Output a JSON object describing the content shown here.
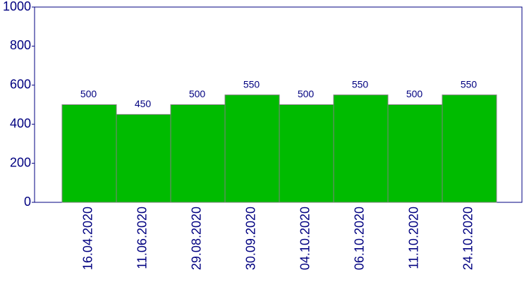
{
  "chart_data": {
    "type": "bar",
    "categories": [
      "16.04.2020",
      "11.06.2020",
      "29.08.2020",
      "30.09.2020",
      "04.10.2020",
      "06.10.2020",
      "11.10.2020",
      "24.10.2020"
    ],
    "values": [
      500,
      450,
      500,
      550,
      500,
      550,
      500,
      550
    ],
    "color": "#00bb00",
    "ylim": [
      0,
      1000
    ],
    "yticks": [
      0,
      200,
      400,
      600,
      800,
      1000
    ],
    "grid": false
  }
}
